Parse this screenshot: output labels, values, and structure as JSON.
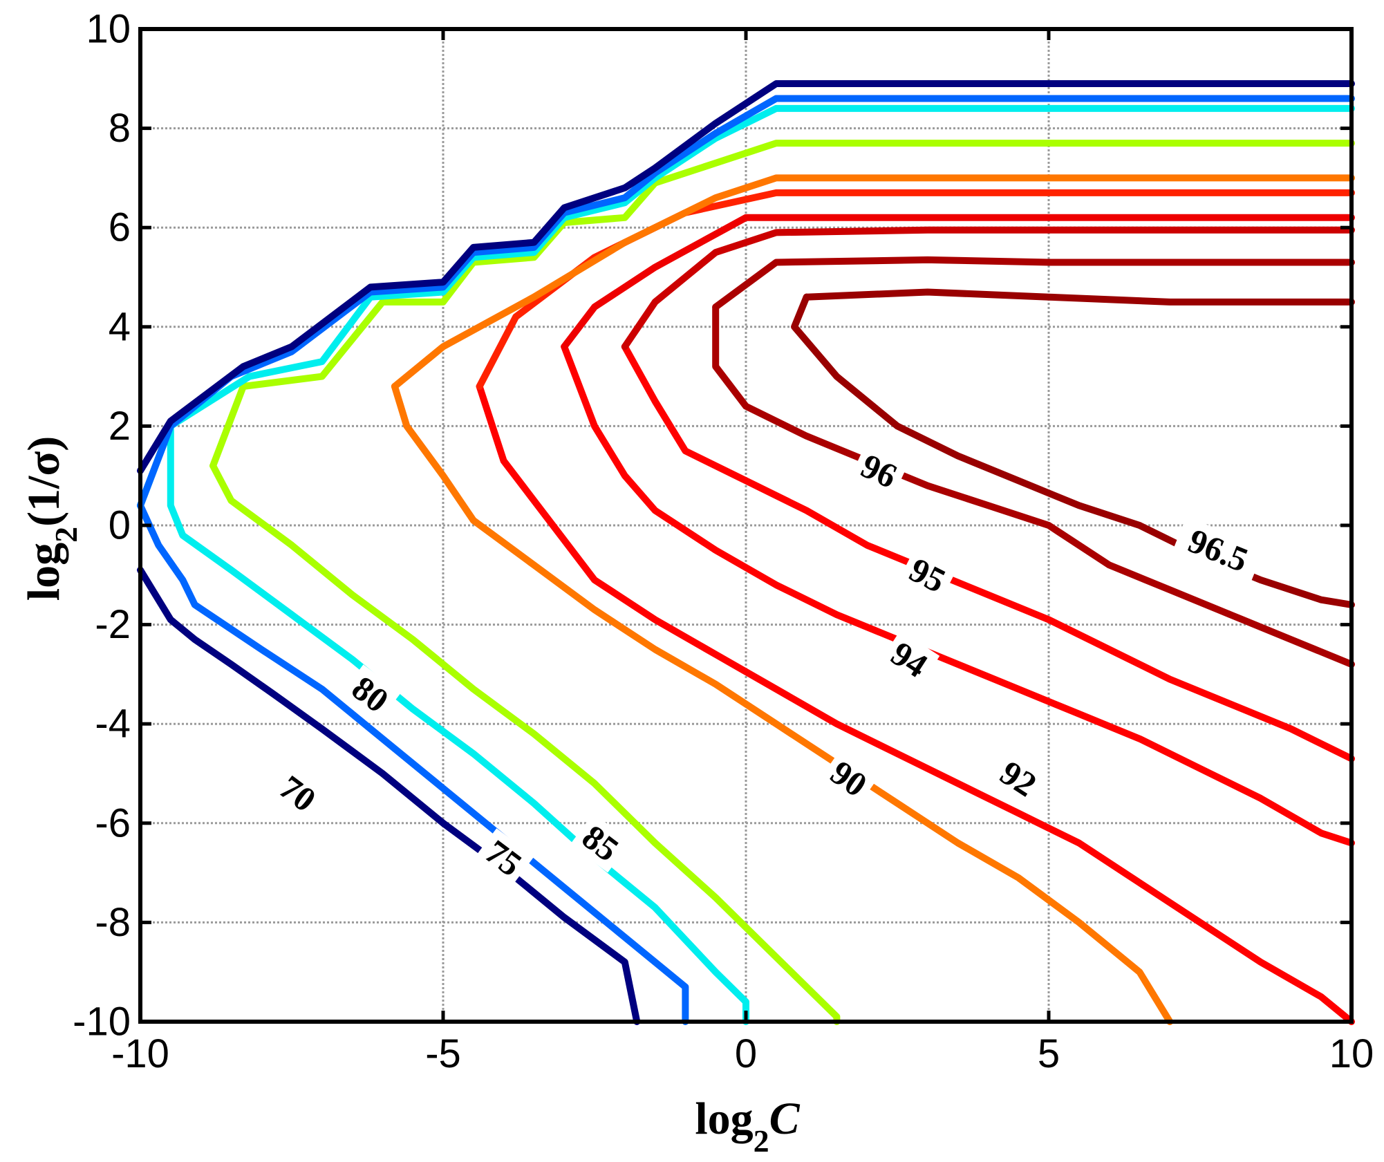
{
  "chart_data": {
    "type": "contour",
    "x_axis": {
      "min": -10,
      "max": 10,
      "ticks": [
        -10,
        -5,
        0,
        5,
        10
      ],
      "tick_labels": [
        "-10",
        "-5",
        "0",
        "5",
        "10"
      ]
    },
    "y_axis": {
      "min": -10,
      "max": 10,
      "ticks": [
        -10,
        -8,
        -6,
        -4,
        -2,
        0,
        2,
        4,
        6,
        8,
        10
      ],
      "tick_labels": [
        "-10",
        "-8",
        "-6",
        "-4",
        "-2",
        "0",
        "2",
        "4",
        "6",
        "8",
        "10"
      ]
    },
    "xlabel": {
      "main": "log",
      "sub": "2",
      "tail": "C"
    },
    "ylabel": {
      "main": "log",
      "sub": "2",
      "tail": "(1/σ)"
    },
    "grid": true,
    "contours": [
      {
        "level": 70,
        "label": "70",
        "color": "#00007F",
        "label_at": [
          -7.4,
          -5.4
        ],
        "label_angle": 37,
        "points": [
          [
            -10,
            -0.9
          ],
          [
            -9.5,
            -1.9
          ],
          [
            -9.1,
            -2.3
          ],
          [
            -8.5,
            -2.8
          ],
          [
            -7.8,
            -3.4
          ],
          [
            -7.0,
            -4.1
          ],
          [
            -6.0,
            -5.0
          ],
          [
            -5.0,
            -6.0
          ],
          [
            -4.0,
            -6.9
          ],
          [
            -3.0,
            -7.9
          ],
          [
            -2.0,
            -8.8
          ],
          [
            -1.8,
            -10
          ]
        ]
      },
      {
        "level": 75,
        "label": "75",
        "color": "#0066FF",
        "label_at": [
          -4.0,
          -6.7
        ],
        "label_angle": 37,
        "points": [
          [
            -10,
            0.4
          ],
          [
            -9.7,
            -0.4
          ],
          [
            -9.3,
            -1.1
          ],
          [
            -9.1,
            -1.6
          ],
          [
            -8.0,
            -2.5
          ],
          [
            -7.0,
            -3.3
          ],
          [
            -6.0,
            -4.3
          ],
          [
            -5.0,
            -5.3
          ],
          [
            -4.0,
            -6.3
          ],
          [
            -3.0,
            -7.3
          ],
          [
            -2.0,
            -8.3
          ],
          [
            -1.0,
            -9.3
          ],
          [
            -1.0,
            -10
          ]
        ]
      },
      {
        "level": 80,
        "label": "80",
        "color": "#00EEEE",
        "label_at": [
          -6.2,
          -3.4
        ],
        "label_angle": 37,
        "points": [
          [
            -10,
            0.4
          ],
          [
            -9.5,
            2.0
          ],
          [
            -9.5,
            0.4
          ],
          [
            -9.3,
            -0.2
          ],
          [
            -8.5,
            -0.9
          ],
          [
            -7.5,
            -1.8
          ],
          [
            -6.5,
            -2.7
          ],
          [
            -5.5,
            -3.7
          ],
          [
            -4.5,
            -4.6
          ],
          [
            -3.5,
            -5.6
          ],
          [
            -2.5,
            -6.7
          ],
          [
            -1.5,
            -7.7
          ],
          [
            -0.5,
            -9.0
          ],
          [
            0,
            -9.6
          ],
          [
            0,
            -10
          ]
        ]
      },
      {
        "level": 85,
        "label": "85",
        "color": "#AAFF00",
        "label_at": [
          -2.4,
          -6.4
        ],
        "label_angle": 37,
        "points": [
          [
            -8.8,
            1.2
          ],
          [
            -8.5,
            0.5
          ],
          [
            -7.5,
            -0.4
          ],
          [
            -6.5,
            -1.4
          ],
          [
            -5.5,
            -2.3
          ],
          [
            -4.5,
            -3.3
          ],
          [
            -3.5,
            -4.2
          ],
          [
            -2.5,
            -5.2
          ],
          [
            -1.5,
            -6.4
          ],
          [
            -0.5,
            -7.5
          ],
          [
            0.5,
            -8.7
          ],
          [
            1.5,
            -9.9
          ],
          [
            1.5,
            -10
          ]
        ]
      },
      {
        "level": 90,
        "label": "90",
        "color": "#FF7700",
        "label_at": [
          1.7,
          -5.1
        ],
        "label_angle": 35,
        "points": [
          [
            -5.8,
            2.8
          ],
          [
            -5.6,
            2.0
          ],
          [
            -5.0,
            1.0
          ],
          [
            -4.5,
            0.1
          ],
          [
            -3.5,
            -0.8
          ],
          [
            -2.5,
            -1.7
          ],
          [
            -1.5,
            -2.5
          ],
          [
            -0.5,
            -3.2
          ],
          [
            0.5,
            -4.0
          ],
          [
            1.5,
            -4.8
          ],
          [
            2.5,
            -5.6
          ],
          [
            3.5,
            -6.4
          ],
          [
            4.5,
            -7.1
          ],
          [
            5.5,
            -8.0
          ],
          [
            6.5,
            -9.0
          ],
          [
            7.0,
            -10
          ]
        ]
      },
      {
        "level": 92,
        "label": "92",
        "color": "#FF0000",
        "label_at": [
          4.5,
          -5.1
        ],
        "label_angle": 33,
        "points": [
          [
            -4.4,
            2.8
          ],
          [
            -4.0,
            1.3
          ],
          [
            -3.5,
            0.5
          ],
          [
            -3.0,
            -0.3
          ],
          [
            -2.5,
            -1.1
          ],
          [
            -1.5,
            -1.9
          ],
          [
            -0.5,
            -2.6
          ],
          [
            0.5,
            -3.3
          ],
          [
            1.5,
            -4.0
          ],
          [
            2.5,
            -4.6
          ],
          [
            3.5,
            -5.2
          ],
          [
            4.5,
            -5.8
          ],
          [
            5.5,
            -6.4
          ],
          [
            6.5,
            -7.2
          ],
          [
            7.5,
            -8.0
          ],
          [
            8.5,
            -8.8
          ],
          [
            9.5,
            -9.5
          ],
          [
            10,
            -10
          ]
        ]
      },
      {
        "level": 94,
        "label": "94",
        "color": "#FF0000",
        "label_at": [
          2.7,
          -2.7
        ],
        "label_angle": 33,
        "points": [
          [
            -3.0,
            3.6
          ],
          [
            -2.5,
            2.0
          ],
          [
            -2.0,
            1.0
          ],
          [
            -1.5,
            0.3
          ],
          [
            -0.5,
            -0.5
          ],
          [
            0.5,
            -1.2
          ],
          [
            1.5,
            -1.8
          ],
          [
            2.5,
            -2.3
          ],
          [
            3.5,
            -2.8
          ],
          [
            4.5,
            -3.3
          ],
          [
            5.5,
            -3.8
          ],
          [
            6.5,
            -4.3
          ],
          [
            7.5,
            -4.9
          ],
          [
            8.5,
            -5.5
          ],
          [
            9.5,
            -6.2
          ],
          [
            10,
            -6.4
          ]
        ]
      },
      {
        "level": 95,
        "label": "95",
        "color": "#FF0000",
        "label_at": [
          3.0,
          -1.0
        ],
        "label_angle": 27,
        "points": [
          [
            -2.0,
            3.6
          ],
          [
            -1.5,
            2.5
          ],
          [
            -1.0,
            1.5
          ],
          [
            0,
            0.9
          ],
          [
            1.0,
            0.3
          ],
          [
            2.0,
            -0.4
          ],
          [
            3.0,
            -0.9
          ],
          [
            4.0,
            -1.4
          ],
          [
            5.0,
            -1.9
          ],
          [
            6.0,
            -2.5
          ],
          [
            7.0,
            -3.1
          ],
          [
            8.0,
            -3.6
          ],
          [
            9.0,
            -4.1
          ],
          [
            10,
            -4.7
          ]
        ]
      },
      {
        "level": 96,
        "label": "96",
        "color": "#AA0000",
        "label_at": [
          2.2,
          1.1
        ],
        "label_angle": 25,
        "points": [
          [
            -0.5,
            4.4
          ],
          [
            -0.5,
            3.2
          ],
          [
            0,
            2.4
          ],
          [
            1.0,
            1.8
          ],
          [
            2.0,
            1.3
          ],
          [
            3.0,
            0.8
          ],
          [
            4.0,
            0.4
          ],
          [
            5.0,
            0.0
          ],
          [
            6.0,
            -0.8
          ],
          [
            7.0,
            -1.3
          ],
          [
            8.0,
            -1.8
          ],
          [
            9.0,
            -2.3
          ],
          [
            10,
            -2.8
          ]
        ]
      },
      {
        "level": 96.5,
        "label": "96.5",
        "color": "#990000",
        "label_at": [
          7.8,
          -0.5
        ],
        "label_angle": 22,
        "points": [
          [
            1.0,
            4.6
          ],
          [
            0.8,
            4.0
          ],
          [
            1.5,
            3.0
          ],
          [
            2.5,
            2.0
          ],
          [
            3.5,
            1.4
          ],
          [
            4.5,
            0.9
          ],
          [
            5.5,
            0.4
          ],
          [
            6.5,
            0.0
          ],
          [
            7.5,
            -0.6
          ],
          [
            8.5,
            -1.1
          ],
          [
            9.5,
            -1.5
          ],
          [
            10,
            -1.6
          ]
        ]
      },
      {
        "level": "unlabeled-1",
        "color": "#990000",
        "points": [
          [
            1.0,
            4.6
          ],
          [
            3.0,
            4.7
          ],
          [
            5.0,
            4.6
          ],
          [
            7.0,
            4.5
          ],
          [
            10,
            4.5
          ]
        ]
      },
      {
        "level": "unlabeled-2",
        "color": "#AA0000",
        "points": [
          [
            -0.5,
            4.4
          ],
          [
            0.5,
            5.3
          ],
          [
            3.0,
            5.35
          ],
          [
            5.0,
            5.3
          ],
          [
            10,
            5.3
          ]
        ]
      },
      {
        "level": "unlabeled-3",
        "color": "#CC0000",
        "points": [
          [
            -2.0,
            3.6
          ],
          [
            -1.5,
            4.5
          ],
          [
            -0.5,
            5.5
          ],
          [
            0.5,
            5.9
          ],
          [
            3.0,
            5.95
          ],
          [
            10,
            5.95
          ]
        ]
      },
      {
        "level": "unlabeled-4",
        "color": "#EE0000",
        "points": [
          [
            -3.0,
            3.6
          ],
          [
            -2.5,
            4.4
          ],
          [
            -1.5,
            5.2
          ],
          [
            0,
            6.2
          ],
          [
            10,
            6.2
          ]
        ]
      },
      {
        "level": "unlabeled-5",
        "color": "#FF2200",
        "points": [
          [
            -4.4,
            2.8
          ],
          [
            -3.8,
            4.2
          ],
          [
            -2.5,
            5.4
          ],
          [
            -1.0,
            6.3
          ],
          [
            0.5,
            6.7
          ],
          [
            10,
            6.7
          ]
        ]
      },
      {
        "level": "unlabeled-6",
        "color": "#FF7700",
        "points": [
          [
            -5.8,
            2.8
          ],
          [
            -5.0,
            3.6
          ],
          [
            -3.5,
            4.6
          ],
          [
            -2.0,
            5.7
          ],
          [
            -0.5,
            6.6
          ],
          [
            0.5,
            7.0
          ],
          [
            10,
            7.0
          ]
        ]
      },
      {
        "level": "unlabeled-7",
        "color": "#AAFF00",
        "points": [
          [
            -8.8,
            1.2
          ],
          [
            -8.3,
            2.8
          ],
          [
            -7.0,
            3.0
          ],
          [
            -6.0,
            4.5
          ],
          [
            -5.0,
            4.5
          ],
          [
            -4.5,
            5.3
          ],
          [
            -3.5,
            5.4
          ],
          [
            -3.0,
            6.1
          ],
          [
            -2.0,
            6.2
          ],
          [
            -1.5,
            6.9
          ],
          [
            -0.5,
            7.3
          ],
          [
            0.5,
            7.7
          ],
          [
            10,
            7.7
          ]
        ]
      },
      {
        "level": "unlabeled-8",
        "color": "#00EEEE",
        "points": [
          [
            -9.5,
            2.0
          ],
          [
            -8.2,
            3.0
          ],
          [
            -7.0,
            3.3
          ],
          [
            -6.2,
            4.6
          ],
          [
            -5.0,
            4.7
          ],
          [
            -4.5,
            5.4
          ],
          [
            -3.5,
            5.5
          ],
          [
            -3.0,
            6.2
          ],
          [
            -2.0,
            6.5
          ],
          [
            -1.5,
            7.0
          ],
          [
            -0.5,
            7.8
          ],
          [
            0.5,
            8.4
          ],
          [
            10,
            8.4
          ]
        ]
      },
      {
        "level": "unlabeled-9",
        "color": "#0066FF",
        "points": [
          [
            -10,
            0.4
          ],
          [
            -9.5,
            2.0
          ],
          [
            -8.5,
            3.0
          ],
          [
            -7.5,
            3.5
          ],
          [
            -6.2,
            4.7
          ],
          [
            -5.0,
            4.8
          ],
          [
            -4.5,
            5.5
          ],
          [
            -3.5,
            5.6
          ],
          [
            -3.0,
            6.3
          ],
          [
            -2.0,
            6.6
          ],
          [
            -1.5,
            7.1
          ],
          [
            -0.5,
            7.9
          ],
          [
            0.5,
            8.6
          ],
          [
            10,
            8.6
          ]
        ]
      },
      {
        "level": "unlabeled-10",
        "color": "#00007F",
        "points": [
          [
            -10,
            1.1
          ],
          [
            -9.5,
            2.1
          ],
          [
            -8.3,
            3.2
          ],
          [
            -7.5,
            3.6
          ],
          [
            -6.2,
            4.8
          ],
          [
            -5.0,
            4.9
          ],
          [
            -4.5,
            5.6
          ],
          [
            -3.5,
            5.7
          ],
          [
            -3.0,
            6.4
          ],
          [
            -2.0,
            6.8
          ],
          [
            -1.5,
            7.2
          ],
          [
            -0.5,
            8.1
          ],
          [
            0.5,
            8.9
          ],
          [
            10,
            8.9
          ]
        ]
      }
    ]
  }
}
